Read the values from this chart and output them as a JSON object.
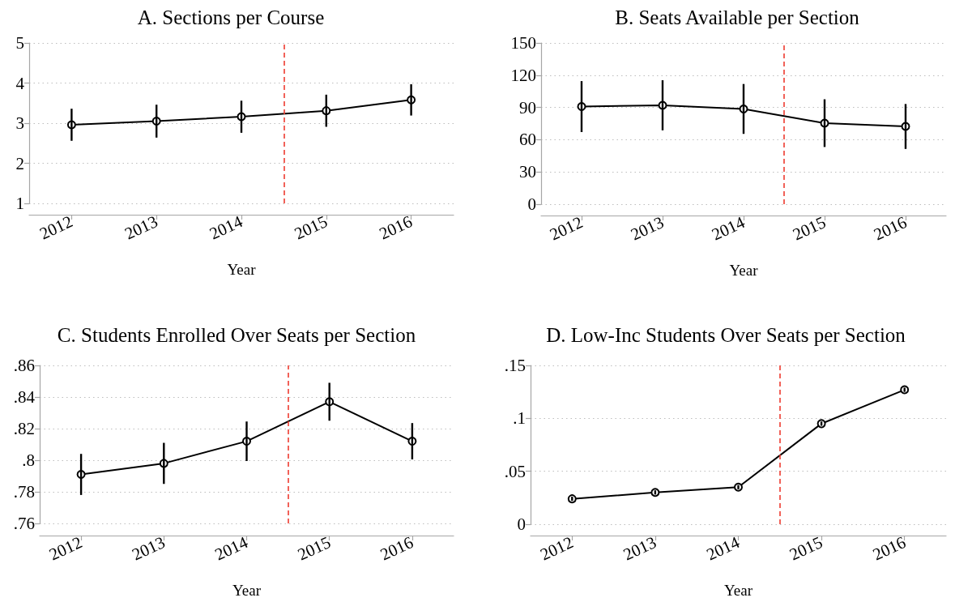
{
  "chart_data": [
    {
      "type": "line",
      "title": "A. Sections per Course",
      "xlabel": "Year",
      "x": [
        2012,
        2013,
        2014,
        2015,
        2016
      ],
      "values": [
        2.96,
        3.05,
        3.16,
        3.31,
        3.58
      ],
      "errors": [
        0.4,
        0.41,
        0.4,
        0.4,
        0.39
      ],
      "color": "#000000",
      "marker": "circle",
      "grid": "y",
      "xlim": [
        2011.5,
        2016.5
      ],
      "xticks": [
        2012,
        2013,
        2014,
        2015,
        2016
      ],
      "ylim": [
        1,
        5
      ],
      "yticks": [
        1,
        2,
        3,
        4,
        5
      ],
      "ref_lines": [
        {
          "axis": "x",
          "value": 2014.5,
          "color": "#ee3b30",
          "line_style": "dashed"
        }
      ]
    },
    {
      "type": "line",
      "title": "B. Seats Available per Section",
      "xlabel": "Year",
      "x": [
        2012,
        2013,
        2014,
        2015,
        2016
      ],
      "values": [
        90.8,
        92.0,
        88.6,
        75.4,
        72.3
      ],
      "errors": [
        23.7,
        23.3,
        23.2,
        22.2,
        20.9
      ],
      "color": "#000000",
      "marker": "circle",
      "grid": "y",
      "xlim": [
        2011.5,
        2016.5
      ],
      "xticks": [
        2012,
        2013,
        2014,
        2015,
        2016
      ],
      "ylim": [
        0,
        150
      ],
      "yticks": [
        0,
        30,
        60,
        90,
        120,
        150
      ],
      "ref_lines": [
        {
          "axis": "x",
          "value": 2014.5,
          "color": "#ee3b30",
          "line_style": "dashed"
        }
      ]
    },
    {
      "type": "line",
      "title": "C. Students Enrolled Over Seats per Section",
      "xlabel": "Year",
      "x": [
        2012,
        2013,
        2014,
        2015,
        2016
      ],
      "values": [
        0.791,
        0.798,
        0.812,
        0.837,
        0.812
      ],
      "errors": [
        0.013,
        0.013,
        0.0125,
        0.012,
        0.0115
      ],
      "color": "#000000",
      "marker": "circle",
      "grid": "y",
      "xlim": [
        2011.5,
        2016.5
      ],
      "xticks": [
        2012,
        2013,
        2014,
        2015,
        2016
      ],
      "ylim": [
        0.76,
        0.86
      ],
      "yticks": [
        {
          "value": 0.76,
          "label": ".76"
        },
        {
          "value": 0.78,
          "label": ".78"
        },
        {
          "value": 0.8,
          "label": ".8"
        },
        {
          "value": 0.82,
          "label": ".82"
        },
        {
          "value": 0.84,
          "label": ".84"
        },
        {
          "value": 0.86,
          "label": ".86"
        }
      ],
      "ref_lines": [
        {
          "axis": "x",
          "value": 2014.5,
          "color": "#ee3b30",
          "line_style": "dashed"
        }
      ]
    },
    {
      "type": "line",
      "title": "D. Low-Inc Students Over Seats per Section",
      "xlabel": "Year",
      "x": [
        2012,
        2013,
        2014,
        2015,
        2016
      ],
      "values": [
        0.024,
        0.03,
        0.035,
        0.095,
        0.127
      ],
      "errors": [
        0.002,
        0.002,
        0.002,
        0.002,
        0.002
      ],
      "color": "#000000",
      "marker": "circle",
      "grid": "y",
      "xlim": [
        2011.5,
        2016.5
      ],
      "xticks": [
        2012,
        2013,
        2014,
        2015,
        2016
      ],
      "ylim": [
        0,
        0.15
      ],
      "yticks": [
        0,
        {
          "value": 0.05,
          "label": ".05"
        },
        {
          "value": 0.1,
          "label": ".1"
        },
        {
          "value": 0.15,
          "label": ".15"
        }
      ],
      "ref_lines": [
        {
          "axis": "x",
          "value": 2014.5,
          "color": "#ee3b30",
          "line_style": "dashed"
        }
      ]
    }
  ]
}
